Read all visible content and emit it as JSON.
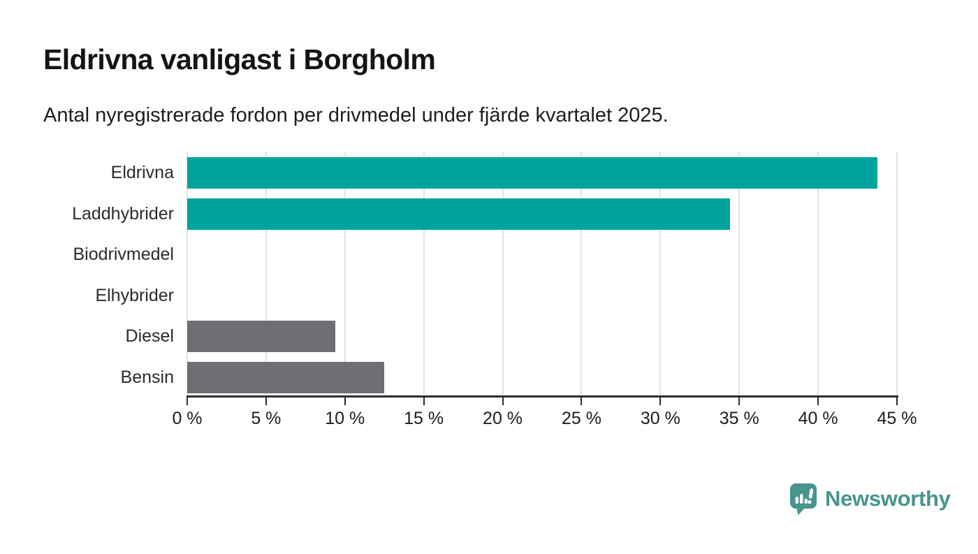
{
  "header": {
    "title": "Eldrivna vanligast i Borgholm",
    "subtitle": "Antal nyregistrerade fordon per drivmedel under fjärde kvartalet 2025."
  },
  "chart_data": {
    "type": "bar",
    "orientation": "horizontal",
    "title": "Eldrivna vanligast i Borgholm",
    "subtitle": "Antal nyregistrerade fordon per drivmedel under fjärde kvartalet 2025.",
    "categories": [
      "Eldrivna",
      "Laddhybrider",
      "Biodrivmedel",
      "Elhybrider",
      "Diesel",
      "Bensin"
    ],
    "values": [
      43.75,
      34.4,
      0,
      0,
      9.4,
      12.5
    ],
    "bar_colors": [
      "#00a49c",
      "#00a49c",
      "#00a49c",
      "#00a49c",
      "#6e6e74",
      "#6e6e74"
    ],
    "unit": "%",
    "xlabel": "",
    "ylabel": "",
    "xlim": [
      0,
      45
    ],
    "x_ticks": [
      0,
      5,
      10,
      15,
      20,
      25,
      30,
      35,
      40,
      45
    ],
    "x_tick_labels": [
      "0 %",
      "5 %",
      "10 %",
      "15 %",
      "20 %",
      "25 %",
      "30 %",
      "35 %",
      "40 %",
      "45 %"
    ],
    "grid": true,
    "legend_position": "none"
  },
  "colors": {
    "accent_teal": "#00a49c",
    "neutral_gray": "#6e6e74",
    "gridline": "#e3e3e3",
    "axis": "#2b2b2b",
    "text": "#1d1d1d",
    "brand": "#46958e"
  },
  "footer": {
    "brand": "Newsworthy"
  },
  "icons": {
    "logo_icon": "bar-chart-speech-bubble-icon"
  }
}
